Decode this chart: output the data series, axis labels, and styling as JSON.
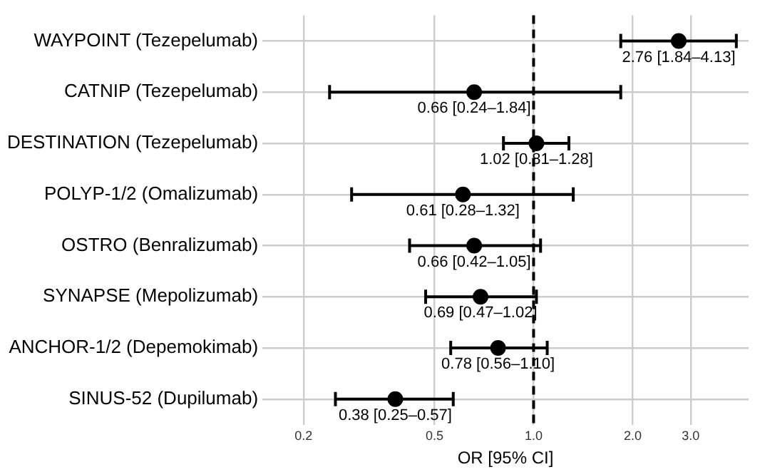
{
  "chart_data": {
    "type": "scatter",
    "orientation": "horizontal",
    "xlabel": "OR [95% CI]",
    "categories": [
      "WAYPOINT (Tezepelumab)",
      "CATNIP (Tezepelumab)",
      "DESTINATION (Tezepelumab)",
      "POLYP-1/2 (Omalizumab)",
      "OSTRO (Benralizumab)",
      "SYNAPSE (Mepolizumab)",
      "ANCHOR-1/2 (Depemokimab)",
      "SINUS-52 (Dupilumab)"
    ],
    "values": [
      2.76,
      0.66,
      1.02,
      0.61,
      0.66,
      0.69,
      0.78,
      0.38
    ],
    "errors": [
      [
        1.84,
        4.13
      ],
      [
        0.24,
        1.84
      ],
      [
        0.81,
        1.28
      ],
      [
        0.28,
        1.32
      ],
      [
        0.42,
        1.05
      ],
      [
        0.47,
        1.02
      ],
      [
        0.56,
        1.1
      ],
      [
        0.25,
        0.57
      ]
    ],
    "value_labels": [
      "2.76 [1.84–4.13]",
      "0.66 [0.24–1.84]",
      "1.02 [0.81–1.28]",
      "0.61 [0.28–1.32]",
      "0.66 [0.42–1.05]",
      "0.69 [0.47–1.02]",
      "0.78 [0.56–1.10]",
      "0.38 [0.25–0.57]"
    ],
    "color": "#000000",
    "marker": "circle",
    "log": "x",
    "grid": true,
    "legend": false,
    "xlim": [
      0.15,
      4.5
    ],
    "xticks": [
      {
        "value": 0.2,
        "label": "0.2"
      },
      {
        "value": 0.5,
        "label": "0.5"
      },
      {
        "value": 1,
        "label": "1.0"
      },
      {
        "value": 2,
        "label": "2.0"
      },
      {
        "value": 3,
        "label": "3.0"
      }
    ],
    "ref_lines": [
      {
        "axis": "x",
        "value": 1,
        "color": "#000000",
        "line_style": "dashed"
      }
    ]
  }
}
